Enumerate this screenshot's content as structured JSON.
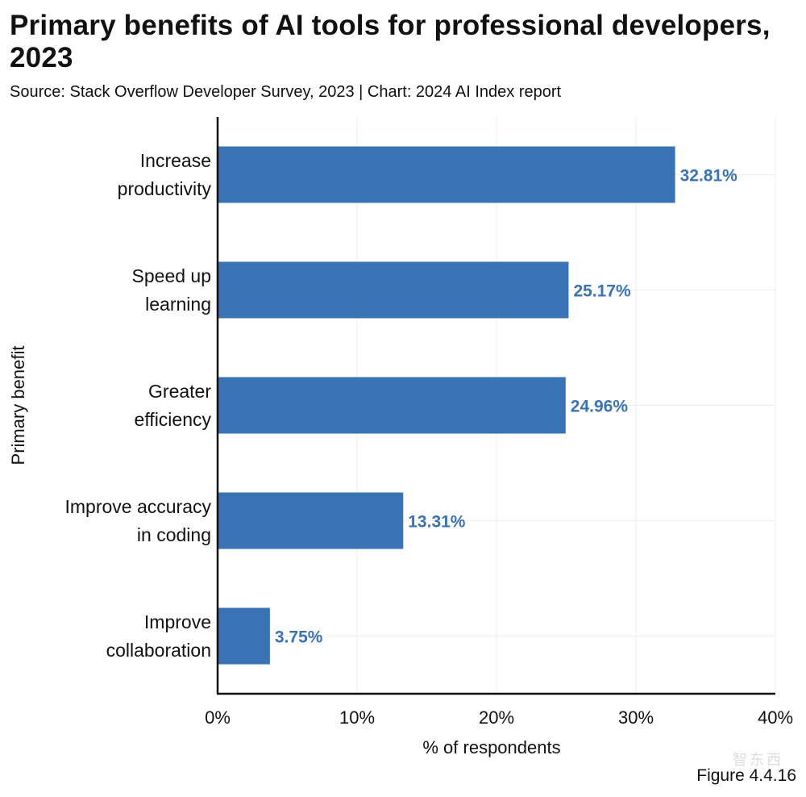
{
  "header": {
    "title": "Primary benefits of AI tools for professional developers, 2023",
    "subtitle": "Source: Stack Overflow Developer Survey, 2023 | Chart: 2024 AI Index report"
  },
  "footer": {
    "figure_label": "Figure 4.4.16",
    "watermark": "智东西"
  },
  "colors": {
    "bar": "#3a73b4",
    "value_label": "#3a73b4",
    "grid": "#eeeeee",
    "axis": "#111111"
  },
  "chart_data": {
    "type": "bar",
    "orientation": "horizontal",
    "title": "Primary benefits of AI tools for professional developers, 2023",
    "xlabel": "% of respondents",
    "ylabel": "Primary benefit",
    "xlim": [
      0,
      40
    ],
    "x_ticks": [
      0,
      10,
      20,
      30,
      40
    ],
    "x_tick_labels": [
      "0%",
      "10%",
      "20%",
      "30%",
      "40%"
    ],
    "categories": [
      [
        "Increase",
        "productivity"
      ],
      [
        "Speed up",
        "learning"
      ],
      [
        "Greater",
        "efficiency"
      ],
      [
        "Improve accuracy",
        "in coding"
      ],
      [
        "Improve",
        "collaboration"
      ]
    ],
    "values": [
      32.81,
      25.17,
      24.96,
      13.31,
      3.75
    ],
    "value_labels": [
      "32.81%",
      "25.17%",
      "24.96%",
      "13.31%",
      "3.75%"
    ],
    "grid": true
  }
}
